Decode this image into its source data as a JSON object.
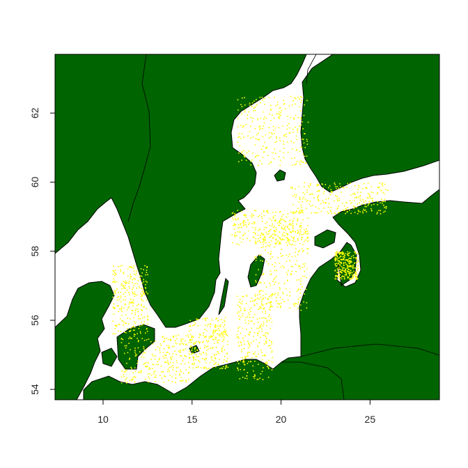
{
  "map": {
    "x_ticks": [
      "10",
      "15",
      "20",
      "25"
    ],
    "y_ticks": [
      "54",
      "56",
      "58",
      "60",
      "62"
    ],
    "colors": {
      "land": "#006400",
      "sea": "#ffffff",
      "points": "#ffff00",
      "border": "#000000"
    }
  },
  "chart_data": {
    "type": "scatter",
    "title": "",
    "xlabel": "",
    "ylabel": "",
    "xlim": [
      7.3,
      28.9
    ],
    "ylim": [
      53.7,
      63.7
    ],
    "grid": false,
    "legend": "none",
    "xticks": [
      10,
      15,
      20,
      25
    ],
    "yticks": [
      54,
      56,
      58,
      60,
      62
    ],
    "series": [
      {
        "color": "#ffff00",
        "regions": [
          {
            "lon": [
              11.0,
              14.8
            ],
            "lat": [
              54.2,
              55.6
            ]
          },
          {
            "lon": [
              14.8,
              17.0
            ],
            "lat": [
              54.6,
              56.1
            ]
          },
          {
            "lon": [
              17.5,
              19.5
            ],
            "lat": [
              54.3,
              56.8
            ]
          },
          {
            "lon": [
              18.5,
              21.5
            ],
            "lat": [
              56.3,
              58.8
            ]
          },
          {
            "lon": [
              17.2,
              21.5
            ],
            "lat": [
              58.2,
              59.2
            ]
          },
          {
            "lon": [
              20.5,
              26.0
            ],
            "lat": [
              59.1,
              60.0
            ]
          },
          {
            "lon": [
              17.5,
              21.5
            ],
            "lat": [
              60.5,
              62.5
            ]
          },
          {
            "lon": [
              23.0,
              24.3
            ],
            "lat": [
              57.2,
              58.0
            ]
          },
          {
            "lon": [
              10.5,
              12.5
            ],
            "lat": [
              55.6,
              57.6
            ]
          }
        ]
      }
    ]
  }
}
